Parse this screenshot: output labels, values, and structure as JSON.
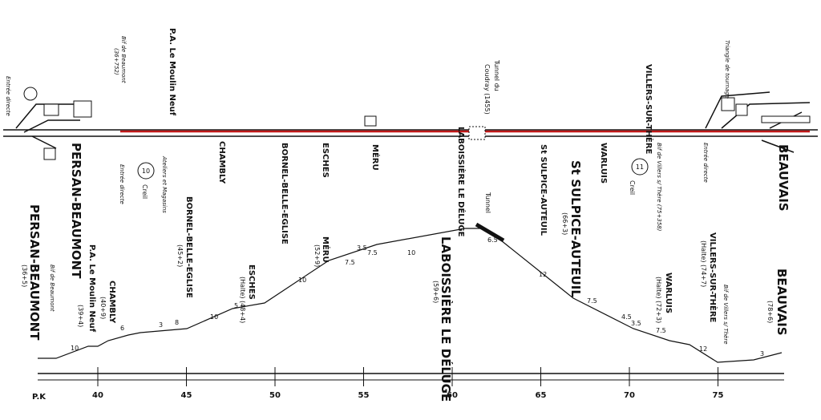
{
  "schematic": {
    "labels": [
      "Entrée directe",
      "Bif de Beaumont",
      "(36+752)",
      "P.A. Le Moulin Neuf",
      "PERSAN-BEAUMONT",
      "10",
      "Creil",
      "Entrée directe",
      "Ateliers et Magasins",
      "CHAMBLY",
      "BORNEL-BELLE-EGLISE",
      "ESCHES",
      "MÉRU",
      "Tunnel du",
      "Coudray (1455)",
      "LABOISSIÈRE LE DÉLUGE",
      "St SULPICE-AUTEUIL",
      "WARLUIS",
      "11",
      "Creil",
      "VILLERS-SUR-THÈRE",
      "Bif de Villers s/ Thère (75+358)",
      "Entrée directe",
      "Triangle de tournage",
      "BEAUVAIS"
    ]
  },
  "profile": {
    "labels": [
      "PERSAN-BEAUMONT",
      "(36+5)",
      "Bif de Beaumont",
      "P.A. Le Moulin Neuf",
      "(39+4)",
      "CHAMBLY",
      "(40+9)",
      "BORNEL-BELLE-EGLISE",
      "(45+2)",
      "ESCHES",
      "(Halte) (48+4)",
      "MÉRU",
      "(52+9)",
      "LABOISSIÈRE LE DÉLUGE",
      "(59+6)",
      "Tunnel",
      "St SULPICE-AUTEUIL",
      "(66+3)",
      "WARLUIS",
      "(Halte) (72+3)",
      "VILLERS-SUR-THÈRE",
      "(Halte) (74+7)",
      "Bif de Villers s/ Thère",
      "BEAUVAIS",
      "(78+6)"
    ],
    "gradients": [
      "10",
      "6",
      "3",
      "8",
      "10",
      "5",
      "10",
      "7.5",
      "3.5",
      "7.5",
      "10",
      "6.5",
      "12",
      "7.5",
      "4.5",
      "3.5",
      "7.5",
      "12",
      "3"
    ]
  },
  "axis": {
    "label": "P.K",
    "ticks": [
      40,
      45,
      50,
      55,
      60,
      65,
      70,
      75
    ]
  }
}
